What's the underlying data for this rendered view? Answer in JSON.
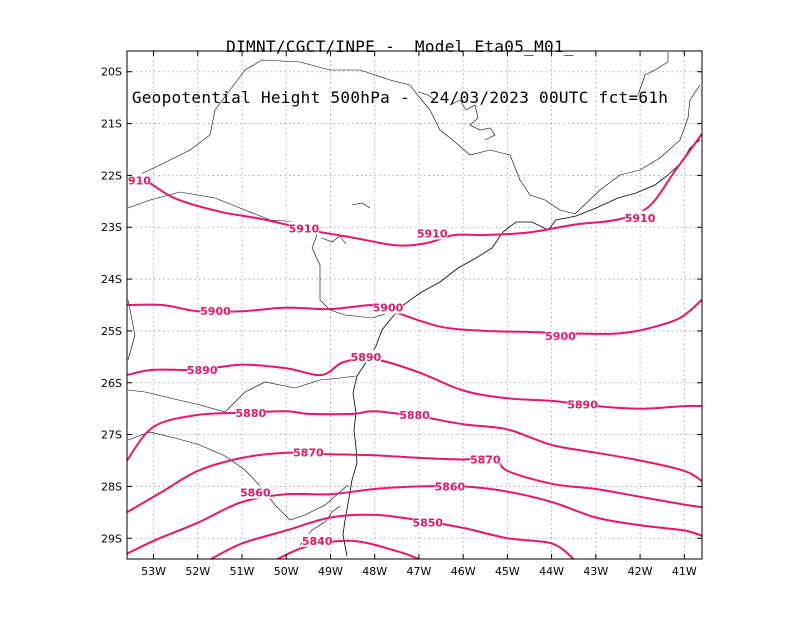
{
  "header": {
    "line1": "DIMNT/CGCT/INPE -  Model Eta05_M01_",
    "line2": "Geopotential Height 500hPa -  24/03/2023 00UTC fct=61h"
  },
  "map": {
    "lon_range": [
      -53.6,
      -40.6
    ],
    "lat_range": [
      -29.4,
      -19.6
    ],
    "colors": {
      "contour": "#e8176a",
      "grid": "#9a9a9a",
      "coast": "#000000",
      "frame": "#000000"
    }
  },
  "axes": {
    "x_ticks": [
      {
        "value": -53,
        "label": "53W"
      },
      {
        "value": -52,
        "label": "52W"
      },
      {
        "value": -51,
        "label": "51W"
      },
      {
        "value": -50,
        "label": "50W"
      },
      {
        "value": -49,
        "label": "49W"
      },
      {
        "value": -48,
        "label": "48W"
      },
      {
        "value": -47,
        "label": "47W"
      },
      {
        "value": -46,
        "label": "46W"
      },
      {
        "value": -45,
        "label": "45W"
      },
      {
        "value": -44,
        "label": "44W"
      },
      {
        "value": -43,
        "label": "43W"
      },
      {
        "value": -42,
        "label": "42W"
      },
      {
        "value": -41,
        "label": "41W"
      }
    ],
    "y_ticks": [
      {
        "value": -20,
        "label": "20S"
      },
      {
        "value": -21,
        "label": "21S"
      },
      {
        "value": -22,
        "label": "22S"
      },
      {
        "value": -23,
        "label": "23S"
      },
      {
        "value": -24,
        "label": "24S"
      },
      {
        "value": -25,
        "label": "25S"
      },
      {
        "value": -26,
        "label": "26S"
      },
      {
        "value": -27,
        "label": "27S"
      },
      {
        "value": -28,
        "label": "28S"
      },
      {
        "value": -29,
        "label": "29S"
      }
    ]
  },
  "contours": [
    {
      "value": 5910,
      "points": [
        [
          -53.6,
          -22.1
        ],
        [
          -53.2,
          -22.1
        ],
        [
          -52.5,
          -22.45
        ],
        [
          -51.5,
          -22.7
        ],
        [
          -50.5,
          -22.85
        ],
        [
          -49.5,
          -23.05
        ],
        [
          -48.5,
          -23.2
        ],
        [
          -47.5,
          -23.35
        ],
        [
          -46.8,
          -23.3
        ],
        [
          -46.2,
          -23.15
        ],
        [
          -45.5,
          -23.15
        ],
        [
          -44.5,
          -23.1
        ],
        [
          -43.5,
          -22.95
        ],
        [
          -42.5,
          -22.85
        ],
        [
          -41.8,
          -22.6
        ],
        [
          -41.2,
          -21.9
        ],
        [
          -40.6,
          -21.2
        ]
      ],
      "labels": [
        {
          "lon": -53.6,
          "lat": -22.1,
          "text": "910"
        },
        {
          "lon": -49.6,
          "lat": -23.02,
          "text": "5910"
        },
        {
          "lon": -46.7,
          "lat": -23.12,
          "text": "5910"
        },
        {
          "lon": -42.0,
          "lat": -22.82,
          "text": "5910"
        }
      ]
    },
    {
      "value": 5900,
      "points": [
        [
          -53.6,
          -24.5
        ],
        [
          -52.8,
          -24.5
        ],
        [
          -52.0,
          -24.62
        ],
        [
          -51.0,
          -24.62
        ],
        [
          -50.0,
          -24.55
        ],
        [
          -49.0,
          -24.58
        ],
        [
          -48.0,
          -24.5
        ],
        [
          -47.5,
          -24.65
        ],
        [
          -46.5,
          -24.92
        ],
        [
          -45.5,
          -25.0
        ],
        [
          -44.5,
          -25.02
        ],
        [
          -43.5,
          -25.05
        ],
        [
          -42.5,
          -25.05
        ],
        [
          -41.8,
          -24.95
        ],
        [
          -41.1,
          -24.75
        ],
        [
          -40.6,
          -24.4
        ]
      ],
      "labels": [
        {
          "lon": -51.6,
          "lat": -24.62,
          "text": "5900"
        },
        {
          "lon": -47.7,
          "lat": -24.55,
          "text": "5900"
        },
        {
          "lon": -43.8,
          "lat": -25.1,
          "text": "5900"
        }
      ]
    },
    {
      "value": 5890,
      "points": [
        [
          -53.6,
          -25.85
        ],
        [
          -53.0,
          -25.75
        ],
        [
          -52.0,
          -25.75
        ],
        [
          -51.0,
          -25.65
        ],
        [
          -50.0,
          -25.72
        ],
        [
          -49.2,
          -25.85
        ],
        [
          -48.7,
          -25.6
        ],
        [
          -48.0,
          -25.55
        ],
        [
          -47.0,
          -25.8
        ],
        [
          -46.0,
          -26.15
        ],
        [
          -45.0,
          -26.3
        ],
        [
          -44.0,
          -26.35
        ],
        [
          -43.0,
          -26.45
        ],
        [
          -42.0,
          -26.5
        ],
        [
          -41.0,
          -26.45
        ],
        [
          -40.6,
          -26.45
        ]
      ],
      "labels": [
        {
          "lon": -51.9,
          "lat": -25.75,
          "text": "5890"
        },
        {
          "lon": -48.2,
          "lat": -25.5,
          "text": "5890"
        },
        {
          "lon": -43.3,
          "lat": -26.42,
          "text": "5890"
        }
      ]
    },
    {
      "value": 5880,
      "points": [
        [
          -53.6,
          -27.5
        ],
        [
          -53.0,
          -26.85
        ],
        [
          -52.0,
          -26.62
        ],
        [
          -51.0,
          -26.58
        ],
        [
          -50.0,
          -26.55
        ],
        [
          -49.5,
          -26.6
        ],
        [
          -48.5,
          -26.6
        ],
        [
          -48.0,
          -26.55
        ],
        [
          -47.0,
          -26.65
        ],
        [
          -46.0,
          -26.8
        ],
        [
          -45.0,
          -26.9
        ],
        [
          -44.0,
          -27.2
        ],
        [
          -43.0,
          -27.35
        ],
        [
          -42.0,
          -27.5
        ],
        [
          -41.0,
          -27.7
        ],
        [
          -40.6,
          -27.9
        ]
      ],
      "labels": [
        {
          "lon": -50.8,
          "lat": -26.58,
          "text": "5880"
        },
        {
          "lon": -47.1,
          "lat": -26.62,
          "text": "5880"
        }
      ]
    },
    {
      "value": 5870,
      "points": [
        [
          -53.6,
          -28.5
        ],
        [
          -52.8,
          -28.1
        ],
        [
          -52.0,
          -27.7
        ],
        [
          -51.0,
          -27.45
        ],
        [
          -50.0,
          -27.35
        ],
        [
          -49.0,
          -27.38
        ],
        [
          -48.0,
          -27.4
        ],
        [
          -47.0,
          -27.45
        ],
        [
          -46.0,
          -27.48
        ],
        [
          -45.3,
          -27.45
        ],
        [
          -45.0,
          -27.7
        ],
        [
          -44.0,
          -27.95
        ],
        [
          -43.0,
          -28.05
        ],
        [
          -42.0,
          -28.2
        ],
        [
          -41.0,
          -28.35
        ],
        [
          -40.6,
          -28.4
        ]
      ],
      "labels": [
        {
          "lon": -49.5,
          "lat": -27.35,
          "text": "5870"
        },
        {
          "lon": -45.5,
          "lat": -27.48,
          "text": "5870"
        }
      ]
    },
    {
      "value": 5860,
      "points": [
        [
          -53.6,
          -29.3
        ],
        [
          -53.0,
          -29.05
        ],
        [
          -52.0,
          -28.7
        ],
        [
          -51.0,
          -28.3
        ],
        [
          -50.0,
          -28.15
        ],
        [
          -49.0,
          -28.15
        ],
        [
          -48.0,
          -28.05
        ],
        [
          -47.0,
          -28.0
        ],
        [
          -46.0,
          -28.0
        ],
        [
          -45.0,
          -28.1
        ],
        [
          -44.0,
          -28.3
        ],
        [
          -43.0,
          -28.6
        ],
        [
          -42.0,
          -28.75
        ],
        [
          -41.0,
          -28.85
        ],
        [
          -40.6,
          -28.95
        ]
      ],
      "labels": [
        {
          "lon": -50.7,
          "lat": -28.12,
          "text": "5860"
        },
        {
          "lon": -46.3,
          "lat": -28.0,
          "text": "5860"
        }
      ]
    },
    {
      "value": 5850,
      "points": [
        [
          -51.7,
          -29.4
        ],
        [
          -51.0,
          -29.1
        ],
        [
          -50.0,
          -28.85
        ],
        [
          -49.0,
          -28.6
        ],
        [
          -48.0,
          -28.55
        ],
        [
          -47.0,
          -28.65
        ],
        [
          -46.0,
          -28.8
        ],
        [
          -45.0,
          -29.0
        ],
        [
          -44.0,
          -29.1
        ],
        [
          -43.5,
          -29.4
        ]
      ],
      "labels": [
        {
          "lon": -46.8,
          "lat": -28.7,
          "text": "5850"
        }
      ]
    },
    {
      "value": 5840,
      "points": [
        [
          -50.2,
          -29.4
        ],
        [
          -49.5,
          -29.15
        ],
        [
          -48.5,
          -29.05
        ],
        [
          -47.5,
          -29.25
        ],
        [
          -47.0,
          -29.4
        ]
      ],
      "labels": [
        {
          "lon": -49.3,
          "lat": -29.05,
          "text": "5840"
        }
      ]
    }
  ]
}
